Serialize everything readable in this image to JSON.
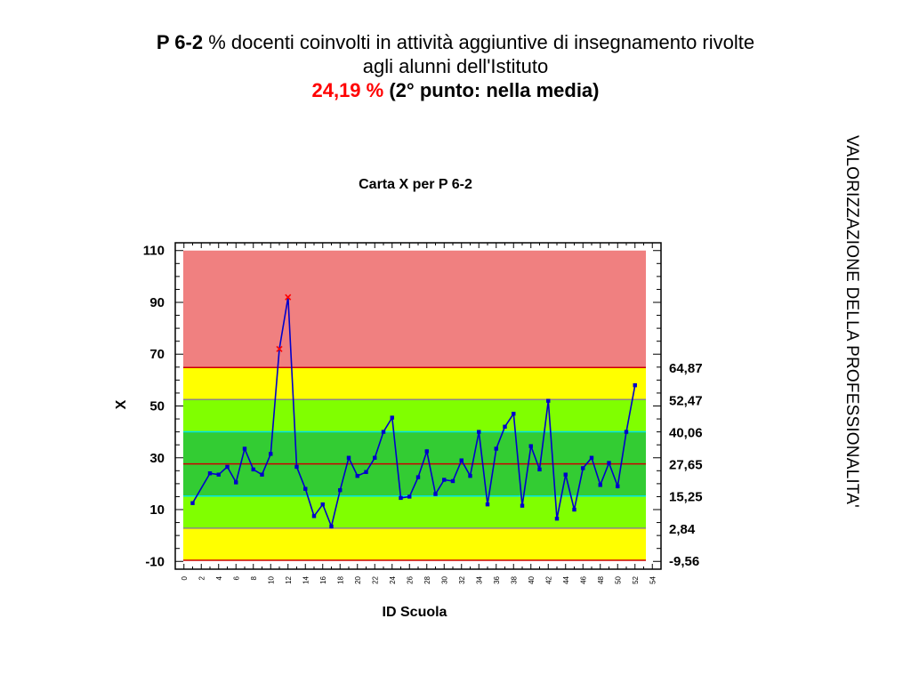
{
  "slide": {
    "code": "P 6-2",
    "description_line1": "% docenti coinvolti in attività aggiuntive di insegnamento rivolte",
    "description_line2": "agli alunni dell'Istituto",
    "value": "24,19 %",
    "position": "(2° punto: nella media)",
    "side_text": "VALORIZZAZIONE DELLA PROFESSIONALITA'"
  },
  "colors": {
    "red_zone": "#f08080",
    "yellow_zone": "#ffff00",
    "light_green_zone": "#80ff00",
    "dark_green_zone": "#33cc33",
    "series_line": "#0000cc",
    "outlier_marker": "#ff0000",
    "center_line": "#cc0000",
    "sigma1_line": "#00e5e5",
    "sigma2_line": "#888888",
    "sigma3_line": "#cc0000"
  },
  "chart_data": {
    "type": "line",
    "title": "Carta X per P 6-2",
    "xlabel": "ID Scuola",
    "ylabel": "X",
    "xlim": [
      -1,
      55
    ],
    "ylim": [
      -13,
      113
    ],
    "yticks": [
      -10,
      10,
      30,
      50,
      70,
      90,
      110
    ],
    "xticks": [
      0,
      2,
      4,
      6,
      8,
      10,
      12,
      14,
      16,
      18,
      20,
      22,
      24,
      26,
      28,
      30,
      32,
      34,
      36,
      38,
      40,
      42,
      44,
      46,
      48,
      50,
      52,
      54
    ],
    "control_limits": {
      "ucl": 64.87,
      "plus_2sigma": 52.47,
      "plus_1sigma": 40.06,
      "center": 27.65,
      "minus_1sigma": 15.25,
      "minus_2sigma": 2.84,
      "lcl": -9.56
    },
    "limit_labels": [
      "64,87",
      "52,47",
      "40,06",
      "27,65",
      "15,25",
      "2,84",
      "-9,56"
    ],
    "zones": [
      {
        "from": 64.87,
        "to": 110,
        "color": "red_zone"
      },
      {
        "from": 52.47,
        "to": 64.87,
        "color": "yellow_zone"
      },
      {
        "from": 40.06,
        "to": 52.47,
        "color": "light_green_zone"
      },
      {
        "from": 15.25,
        "to": 40.06,
        "color": "dark_green_zone"
      },
      {
        "from": 2.84,
        "to": 15.25,
        "color": "light_green_zone"
      },
      {
        "from": -9.56,
        "to": 2.84,
        "color": "yellow_zone"
      }
    ],
    "series": [
      {
        "x": [
          1,
          3,
          4,
          5,
          6,
          7,
          8,
          9,
          10,
          11,
          12,
          13,
          14,
          15,
          16,
          17,
          18,
          19,
          20,
          21,
          22,
          23,
          24,
          25,
          26,
          27,
          28,
          29,
          30,
          31,
          32,
          33,
          34,
          35,
          36,
          37,
          38,
          39,
          40,
          41,
          42,
          43,
          44,
          45,
          46,
          47,
          48,
          49,
          50,
          51,
          52
        ],
        "y": [
          12.5,
          24,
          23.5,
          26.5,
          20.5,
          33.5,
          25.5,
          23.5,
          31.5,
          72,
          92,
          26.5,
          18,
          7.5,
          12,
          3.5,
          17.5,
          30,
          23,
          24.5,
          30,
          40,
          45.5,
          14.5,
          15,
          22.5,
          32.5,
          16,
          21.5,
          21,
          29,
          23,
          40,
          12,
          33.5,
          42,
          47,
          11.5,
          34.5,
          25.5,
          52,
          6.5,
          23.5,
          10,
          26,
          30,
          19.5,
          28,
          19,
          40,
          58
        ]
      }
    ],
    "outliers": [
      11,
      12
    ]
  }
}
